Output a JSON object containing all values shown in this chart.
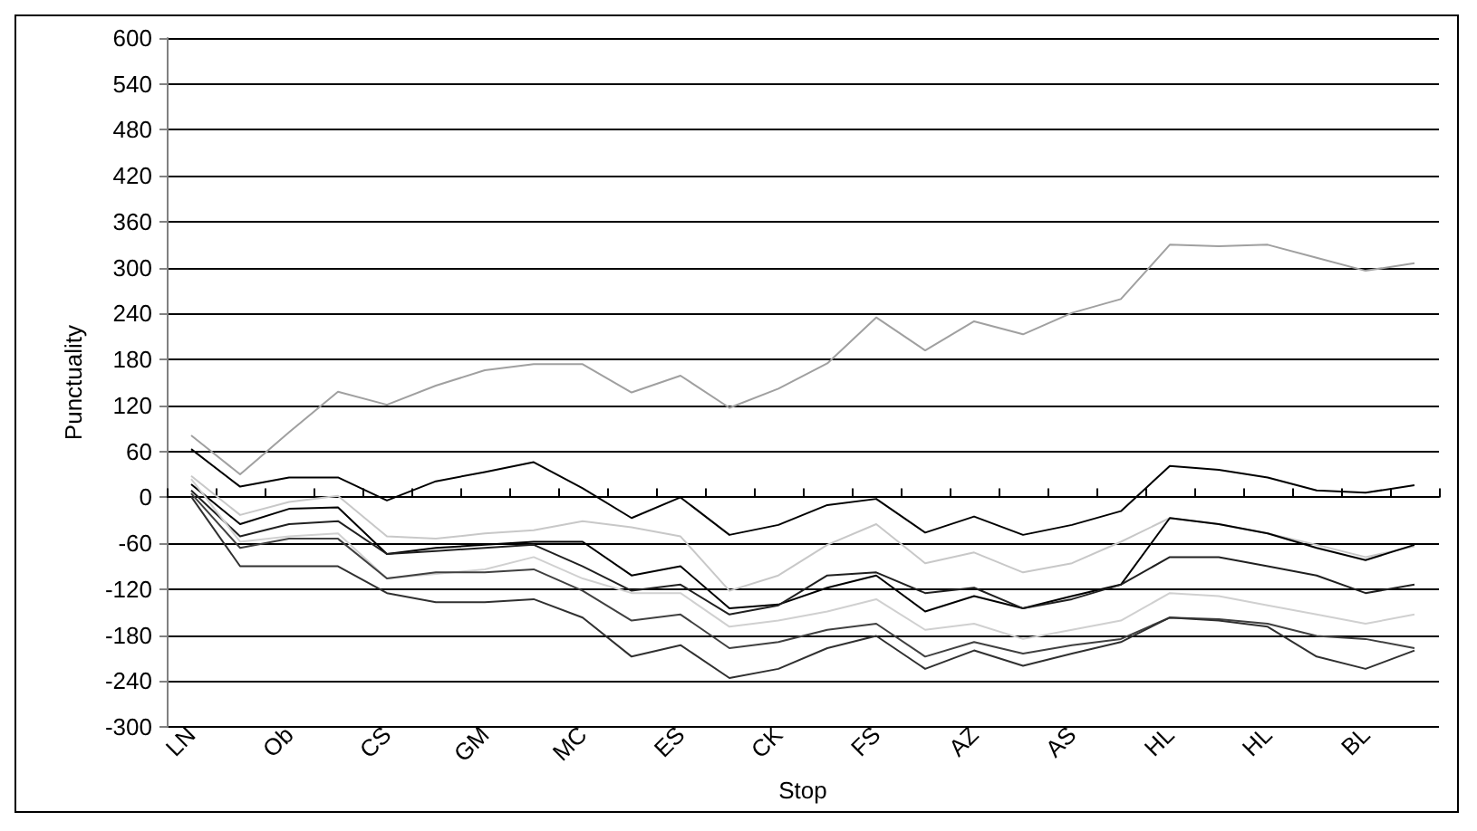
{
  "chart_data": {
    "type": "line",
    "xlabel": "Stop",
    "ylabel": "Punctuality",
    "categories": [
      "LN",
      null,
      "Ob",
      null,
      "CS",
      null,
      "GM",
      null,
      "MC",
      null,
      "ES",
      null,
      "CK",
      null,
      "FS",
      null,
      "AZ",
      null,
      "AS",
      null,
      "HL",
      null,
      "HL",
      null,
      "BL",
      null
    ],
    "ylim": [
      -300,
      600
    ],
    "yticks": [
      -300,
      -240,
      -180,
      -120,
      -60,
      0,
      60,
      120,
      180,
      240,
      300,
      360,
      420,
      480,
      540,
      600
    ],
    "grid": "y",
    "marker": "none",
    "line_style": "solid",
    "series": [
      {
        "color": "#a0a0a0",
        "values": [
          81,
          30,
          85,
          138,
          121,
          146,
          166,
          174,
          174,
          137,
          159,
          117,
          142,
          175,
          235,
          192,
          230,
          213,
          241,
          259,
          330,
          328,
          330,
          313,
          296,
          306
        ]
      },
      {
        "color": "#000000",
        "values": [
          63,
          14,
          26,
          26,
          -4,
          21,
          33,
          46,
          12,
          -27,
          0,
          -49,
          -36,
          -10,
          -2,
          -46,
          -25,
          -49,
          -36,
          -18,
          41,
          36,
          26,
          9,
          6,
          16
        ]
      },
      {
        "color": "#c8c8c8",
        "values": [
          28,
          -23,
          -6,
          2,
          -51,
          -54,
          -47,
          -43,
          -31,
          -39,
          -51,
          -122,
          -102,
          -62,
          -35,
          -86,
          -72,
          -98,
          -86,
          -58,
          -27,
          -35,
          -47,
          -62,
          -78,
          -64
        ]
      },
      {
        "color": "#000000",
        "values": [
          17,
          -35,
          -15,
          -13,
          -74,
          -66,
          -62,
          -58,
          -58,
          -102,
          -90,
          -145,
          -140,
          -118,
          -102,
          -149,
          -129,
          -145,
          -129,
          -114,
          -27,
          -35,
          -47,
          -66,
          -82,
          -62
        ]
      },
      {
        "color": "#202020",
        "values": [
          9,
          -51,
          -35,
          -31,
          -74,
          -70,
          -66,
          -62,
          -90,
          -122,
          -114,
          -153,
          -141,
          -102,
          -98,
          -125,
          -118,
          -145,
          -133,
          -114,
          -78,
          -78,
          -90,
          -102,
          -125,
          -114
        ]
      },
      {
        "color": "#d0d0d0",
        "values": [
          24,
          -58,
          -51,
          -47,
          -106,
          -100,
          -94,
          -78,
          -106,
          -125,
          -125,
          -169,
          -161,
          -149,
          -133,
          -173,
          -165,
          -185,
          -173,
          -161,
          -125,
          -129,
          -141,
          -153,
          -165,
          -153
        ]
      },
      {
        "color": "#404040",
        "values": [
          5,
          -66,
          -54,
          -54,
          -106,
          -98,
          -98,
          -94,
          -122,
          -161,
          -153,
          -197,
          -189,
          -173,
          -165,
          -208,
          -189,
          -204,
          -193,
          -185,
          -157,
          -159,
          -165,
          -181,
          -185,
          -197
        ]
      },
      {
        "color": "#303030",
        "values": [
          1,
          -90,
          -90,
          -90,
          -125,
          -137,
          -137,
          -133,
          -157,
          -208,
          -193,
          -236,
          -224,
          -197,
          -181,
          -224,
          -200,
          -220,
          -204,
          -189,
          -157,
          -161,
          -169,
          -208,
          -224,
          -200
        ]
      }
    ]
  }
}
